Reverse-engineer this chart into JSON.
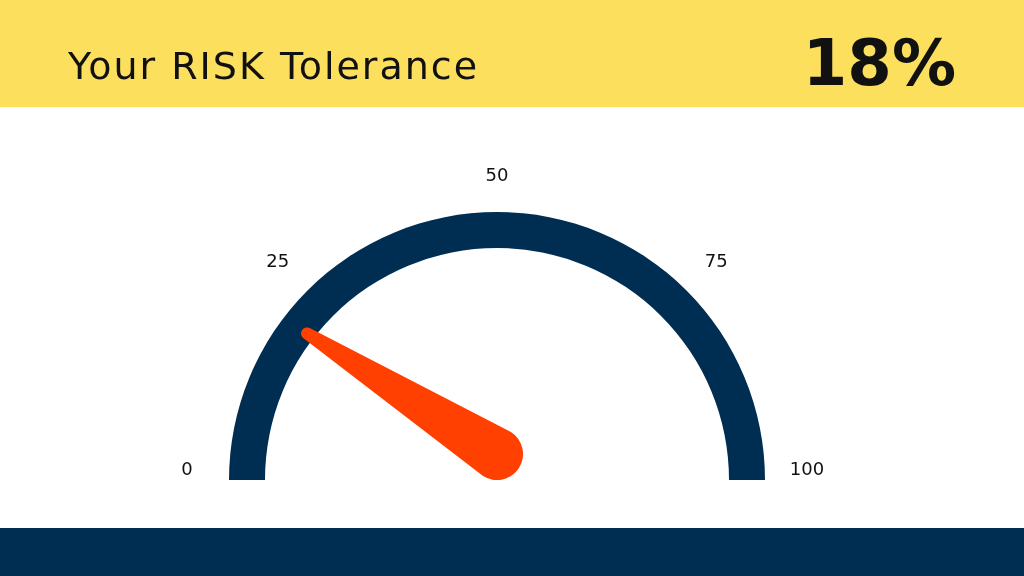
{
  "chart_data": {
    "type": "other",
    "title": "Your RISK Tolerance",
    "values": [
      18
    ],
    "value_labels": [
      "18%"
    ],
    "annotations": [
      "0",
      "25",
      "50",
      "75",
      "100"
    ]
  }
}
